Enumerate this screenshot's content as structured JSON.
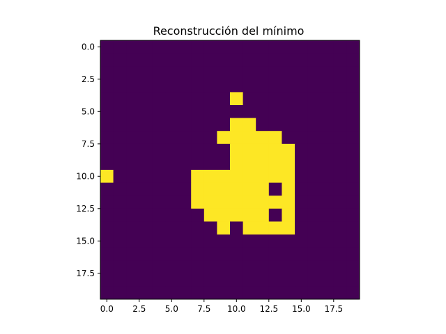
{
  "chart_data": {
    "type": "heatmap",
    "title": "Reconstrucción del mínimo",
    "xlabel": "",
    "ylabel": "",
    "rows": 20,
    "cols": 20,
    "xlim": [
      -0.5,
      19.5
    ],
    "ylim": [
      19.5,
      -0.5
    ],
    "y_axis_inverted": true,
    "colormap": "viridis",
    "colors": {
      "low": "#440154",
      "high": "#fde725"
    },
    "x_ticks": [
      0.0,
      2.5,
      5.0,
      7.5,
      10.0,
      12.5,
      15.0,
      17.5
    ],
    "x_tick_labels": [
      "0.0",
      "2.5",
      "5.0",
      "7.5",
      "10.0",
      "12.5",
      "15.0",
      "17.5"
    ],
    "y_ticks": [
      0.0,
      2.5,
      5.0,
      7.5,
      10.0,
      12.5,
      15.0,
      17.5
    ],
    "y_tick_labels": [
      "0.0",
      "2.5",
      "5.0",
      "7.5",
      "10.0",
      "12.5",
      "15.0",
      "17.5"
    ],
    "grid": false,
    "legend": "none",
    "values": [
      [
        0,
        0,
        0,
        0,
        0,
        0,
        0,
        0,
        0,
        0,
        0,
        0,
        0,
        0,
        0,
        0,
        0,
        0,
        0,
        0
      ],
      [
        0,
        0,
        0,
        0,
        0,
        0,
        0,
        0,
        0,
        0,
        0,
        0,
        0,
        0,
        0,
        0,
        0,
        0,
        0,
        0
      ],
      [
        0,
        0,
        0,
        0,
        0,
        0,
        0,
        0,
        0,
        0,
        0,
        0,
        0,
        0,
        0,
        0,
        0,
        0,
        0,
        0
      ],
      [
        0,
        0,
        0,
        0,
        0,
        0,
        0,
        0,
        0,
        0,
        0,
        0,
        0,
        0,
        0,
        0,
        0,
        0,
        0,
        0
      ],
      [
        0,
        0,
        0,
        0,
        0,
        0,
        0,
        0,
        0,
        0,
        1,
        0,
        0,
        0,
        0,
        0,
        0,
        0,
        0,
        0
      ],
      [
        0,
        0,
        0,
        0,
        0,
        0,
        0,
        0,
        0,
        0,
        0,
        0,
        0,
        0,
        0,
        0,
        0,
        0,
        0,
        0
      ],
      [
        0,
        0,
        0,
        0,
        0,
        0,
        0,
        0,
        0,
        0,
        1,
        1,
        0,
        0,
        0,
        0,
        0,
        0,
        0,
        0
      ],
      [
        0,
        0,
        0,
        0,
        0,
        0,
        0,
        0,
        0,
        1,
        1,
        1,
        1,
        1,
        0,
        0,
        0,
        0,
        0,
        0
      ],
      [
        0,
        0,
        0,
        0,
        0,
        0,
        0,
        0,
        0,
        0,
        1,
        1,
        1,
        1,
        1,
        0,
        0,
        0,
        0,
        0
      ],
      [
        0,
        0,
        0,
        0,
        0,
        0,
        0,
        0,
        0,
        0,
        1,
        1,
        1,
        1,
        1,
        0,
        0,
        0,
        0,
        0
      ],
      [
        1,
        0,
        0,
        0,
        0,
        0,
        0,
        1,
        1,
        1,
        1,
        1,
        1,
        1,
        1,
        0,
        0,
        0,
        0,
        0
      ],
      [
        0,
        0,
        0,
        0,
        0,
        0,
        0,
        1,
        1,
        1,
        1,
        1,
        1,
        0,
        1,
        0,
        0,
        0,
        0,
        0
      ],
      [
        0,
        0,
        0,
        0,
        0,
        0,
        0,
        1,
        1,
        1,
        1,
        1,
        1,
        1,
        1,
        0,
        0,
        0,
        0,
        0
      ],
      [
        0,
        0,
        0,
        0,
        0,
        0,
        0,
        0,
        1,
        1,
        1,
        1,
        1,
        0,
        1,
        0,
        0,
        0,
        0,
        0
      ],
      [
        0,
        0,
        0,
        0,
        0,
        0,
        0,
        0,
        0,
        1,
        0,
        1,
        1,
        1,
        1,
        0,
        0,
        0,
        0,
        0
      ],
      [
        0,
        0,
        0,
        0,
        0,
        0,
        0,
        0,
        0,
        0,
        0,
        0,
        0,
        0,
        0,
        0,
        0,
        0,
        0,
        0
      ],
      [
        0,
        0,
        0,
        0,
        0,
        0,
        0,
        0,
        0,
        0,
        0,
        0,
        0,
        0,
        0,
        0,
        0,
        0,
        0,
        0
      ],
      [
        0,
        0,
        0,
        0,
        0,
        0,
        0,
        0,
        0,
        0,
        0,
        0,
        0,
        0,
        0,
        0,
        0,
        0,
        0,
        0
      ],
      [
        0,
        0,
        0,
        0,
        0,
        0,
        0,
        0,
        0,
        0,
        0,
        0,
        0,
        0,
        0,
        0,
        0,
        0,
        0,
        0
      ],
      [
        0,
        0,
        0,
        0,
        0,
        0,
        0,
        0,
        0,
        0,
        0,
        0,
        0,
        0,
        0,
        0,
        0,
        0,
        0,
        0
      ]
    ]
  }
}
